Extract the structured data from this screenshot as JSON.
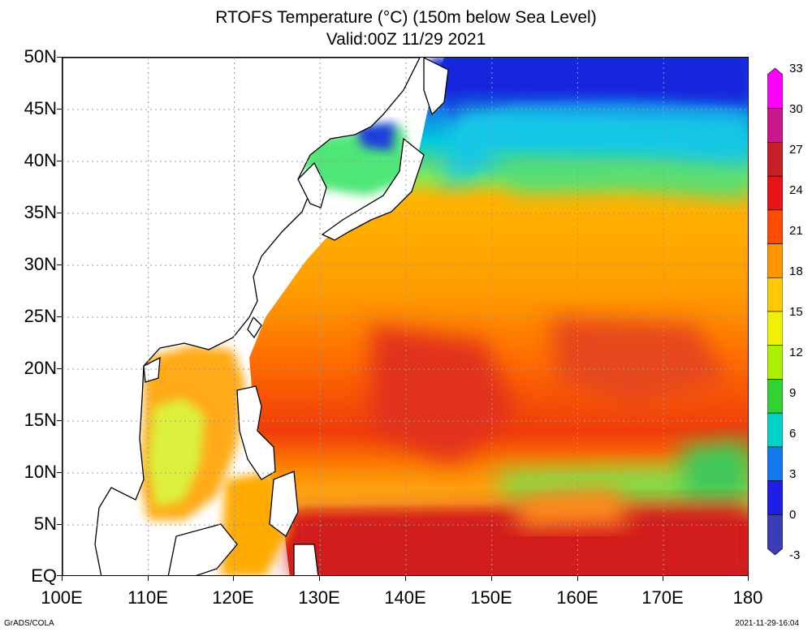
{
  "title": {
    "line1": "RTOFS Temperature (°C) (150m below Sea Level)",
    "line2": "Valid:00Z 11/29 2021"
  },
  "axes": {
    "lat_labels": [
      "50N",
      "45N",
      "40N",
      "35N",
      "30N",
      "25N",
      "20N",
      "15N",
      "10N",
      "5N",
      "EQ"
    ],
    "lon_labels": [
      "100E",
      "110E",
      "120E",
      "130E",
      "140E",
      "150E",
      "160E",
      "170E",
      "180"
    ],
    "lat_range": [
      0,
      50
    ],
    "lon_range": [
      100,
      180
    ],
    "grid": "dotted"
  },
  "colorbar": {
    "labels": [
      "33",
      "30",
      "27",
      "24",
      "21",
      "18",
      "15",
      "12",
      "9",
      "6",
      "3",
      "0",
      "-3"
    ],
    "range": [
      -3,
      33
    ],
    "colors": [
      "#ff00ff",
      "#c8188c",
      "#c81e28",
      "#e61414",
      "#ff4b00",
      "#ff9600",
      "#ffc800",
      "#f0f000",
      "#aaf000",
      "#32d232",
      "#00d2c8",
      "#1478f0",
      "#1e1ee6",
      "#3c3cb4"
    ]
  },
  "credits": {
    "left": "GrADS/COLA",
    "right": "2021-11-29-16:04"
  }
}
